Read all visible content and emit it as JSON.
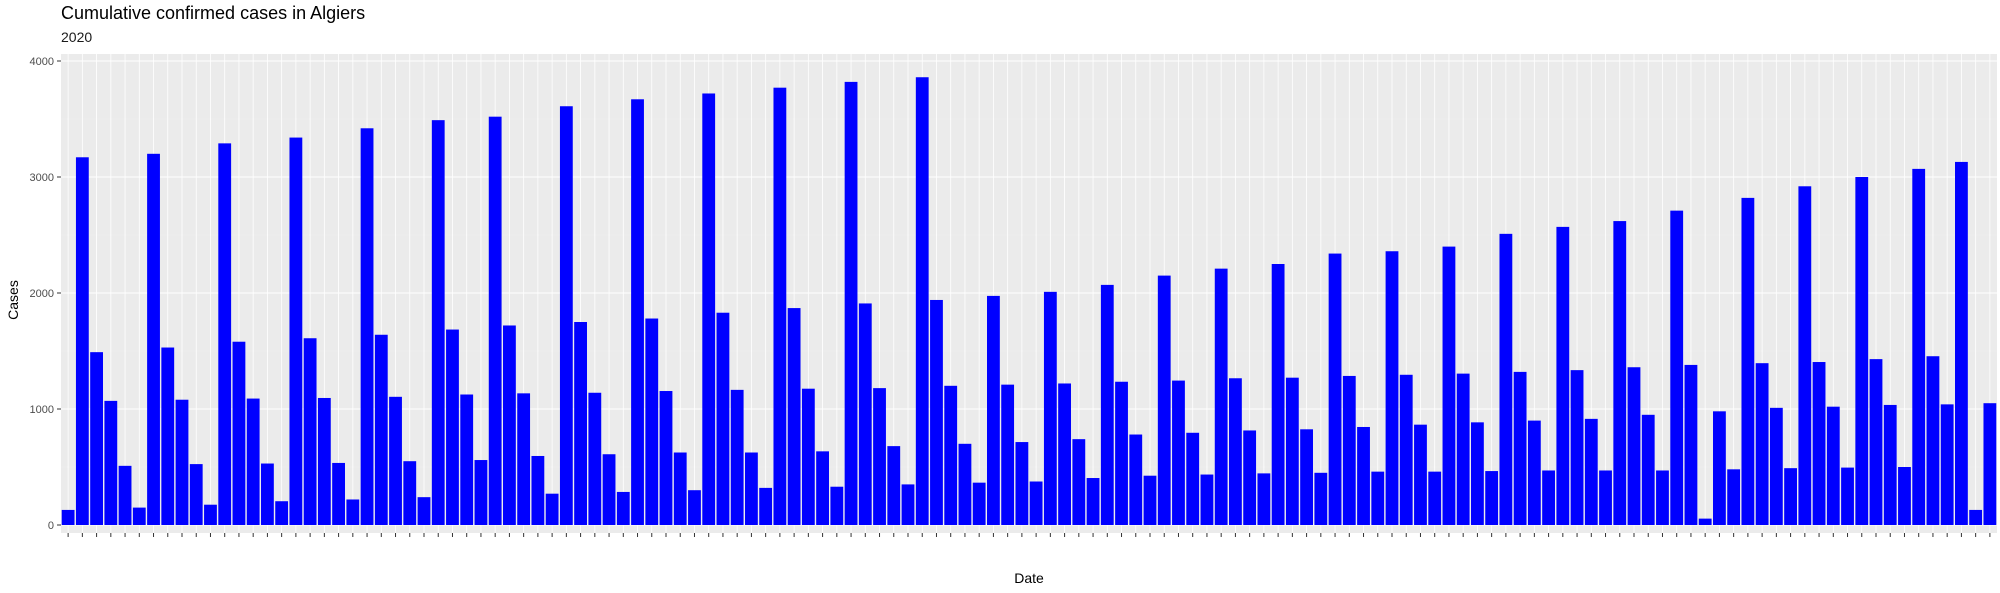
{
  "chart_data": {
    "type": "bar",
    "title": "Cumulative confirmed cases in Algiers",
    "subtitle": "2020",
    "xlabel": "Date",
    "ylabel": "Cases",
    "ylim": [
      0,
      4000
    ],
    "yticks": [
      0,
      1000,
      2000,
      3000,
      4000
    ],
    "grid": true,
    "colors": {
      "bar": "#0000ff",
      "panel": "#ebebeb",
      "grid_major": "#ffffff",
      "grid_minor": "#f2f2f2",
      "text": "#4d4d4d"
    },
    "values": [
      130,
      3170,
      1490,
      1070,
      510,
      150,
      3200,
      1530,
      1080,
      525,
      175,
      3290,
      1580,
      1090,
      530,
      205,
      3340,
      1610,
      1095,
      535,
      220,
      3420,
      1640,
      1105,
      550,
      240,
      3490,
      1685,
      1125,
      560,
      3520,
      1720,
      1135,
      595,
      270,
      3610,
      1750,
      1140,
      610,
      285,
      3670,
      1780,
      1155,
      625,
      300,
      3720,
      1830,
      1165,
      625,
      320,
      3770,
      1870,
      1175,
      635,
      330,
      3820,
      1910,
      1180,
      680,
      350,
      3860,
      1940,
      1200,
      700,
      365,
      1975,
      1210,
      715,
      375,
      2010,
      1220,
      740,
      405,
      2070,
      1235,
      780,
      425,
      2150,
      1245,
      795,
      435,
      2210,
      1265,
      815,
      445,
      2250,
      1270,
      825,
      450,
      2340,
      1285,
      845,
      460,
      2360,
      1295,
      865,
      460,
      2400,
      1305,
      885,
      465,
      2510,
      1320,
      900,
      470,
      2570,
      1335,
      915,
      470,
      2620,
      1360,
      950,
      470,
      2710,
      1380,
      55,
      980,
      480,
      2820,
      1395,
      1010,
      490,
      2920,
      1405,
      1020,
      495,
      3000,
      1430,
      1035,
      500,
      3070,
      1455,
      1040,
      3130,
      130,
      1050
    ]
  }
}
